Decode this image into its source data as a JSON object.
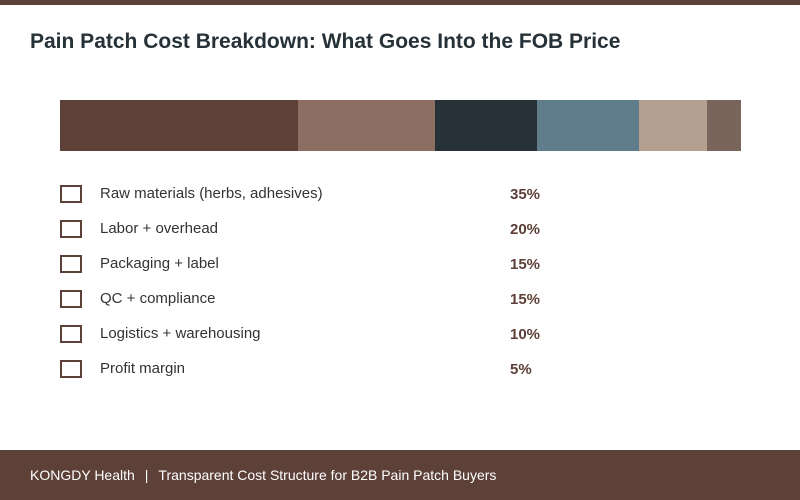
{
  "chart_data": {
    "type": "bar",
    "subtype": "stacked-100",
    "title": "Pain Patch Cost Breakdown: What Goes Into the FOB Price",
    "unit": "%",
    "categories": [
      "Raw materials (herbs, adhesives)",
      "Labor + overhead",
      "Packaging + label",
      "QC + compliance",
      "Logistics + warehousing",
      "Profit margin"
    ],
    "values": [
      35,
      20,
      15,
      15,
      10,
      5
    ],
    "value_labels": [
      "35%",
      "20%",
      "15%",
      "15%",
      "10%",
      "5%"
    ],
    "colors": [
      "#5d4037",
      "#8d6e63",
      "#263238",
      "#607d8b",
      "#b4a091",
      "#79655b"
    ],
    "legend_position": "bottom-left",
    "grid": false
  },
  "footer": {
    "brand": "KONGDY Health",
    "separator": "|",
    "tagline": "Transparent Cost Structure for B2B Pain Patch Buyers"
  },
  "colors": {
    "accent": "#5d4037",
    "title": "#263238"
  }
}
